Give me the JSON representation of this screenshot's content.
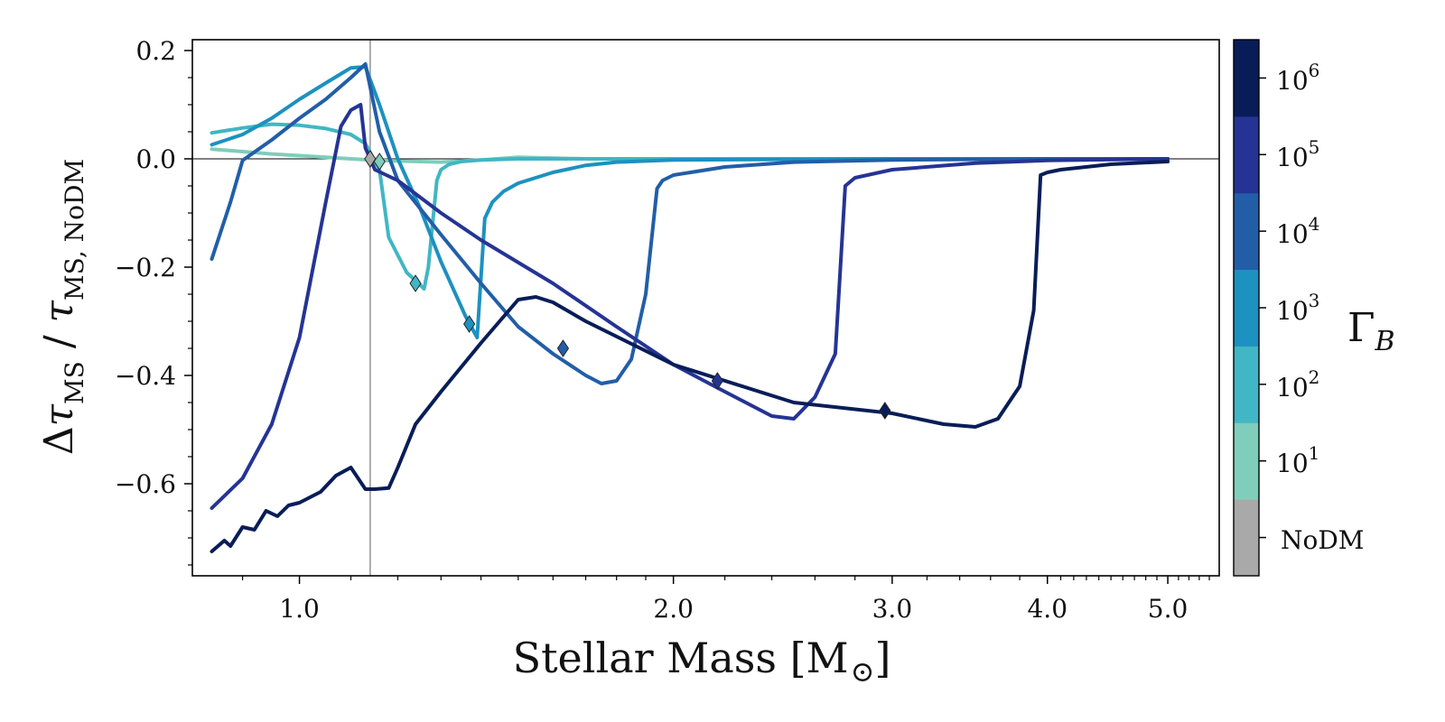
{
  "chart_data": {
    "type": "line",
    "title": "",
    "xlabel": "Stellar Mass [M⊙]",
    "ylabel": "Δτ_MS / τ_MS, NoDM",
    "x_scale": "log",
    "xlim": [
      0.82,
      5.5
    ],
    "ylim": [
      -0.77,
      0.22
    ],
    "x_ticks": [
      1.0,
      2.0,
      3.0,
      4.0,
      5.0
    ],
    "x_tick_labels": [
      "1.0",
      "2.0",
      "3.0",
      "4.0",
      "5.0"
    ],
    "y_ticks": [
      0.2,
      0.0,
      -0.2,
      -0.4,
      -0.6
    ],
    "y_tick_labels": [
      "0.2",
      "0.0",
      "−0.2",
      "−0.4",
      "−0.6"
    ],
    "reference_lines": {
      "horizontal_y": 0.0,
      "vertical_x": 1.14
    },
    "colorbar": {
      "label": "Γ_B",
      "levels": [
        "NoDM",
        "10^1",
        "10^2",
        "10^3",
        "10^4",
        "10^5",
        "10^6"
      ],
      "colors": [
        "#a9a9a9",
        "#7fcdbb",
        "#41b6c4",
        "#1d91c0",
        "#225ea8",
        "#253494",
        "#081d58"
      ],
      "tick_labels": [
        "NoDM",
        "10",
        "1",
        "10",
        "2",
        "10",
        "3",
        "10",
        "4",
        "10",
        "5",
        "10",
        "6"
      ]
    },
    "series": [
      {
        "level": "10^1",
        "color": "#7fcdbb",
        "x": [
          0.85,
          0.95,
          1.05,
          1.1,
          1.14,
          1.2,
          1.3,
          1.4,
          1.5,
          1.7,
          2.0,
          3.0,
          5.0
        ],
        "y": [
          0.018,
          0.009,
          0.003,
          0.0,
          -0.002,
          -0.004,
          -0.006,
          -0.002,
          0.003,
          0.0,
          0.0,
          0.0,
          0.0
        ],
        "marker": null
      },
      {
        "level": "10^2",
        "color": "#41b6c4",
        "x": [
          0.85,
          0.9,
          0.95,
          1.0,
          1.05,
          1.1,
          1.13,
          1.16,
          1.18,
          1.22,
          1.26,
          1.27,
          1.28,
          1.29,
          1.3,
          1.32,
          1.35,
          1.4,
          1.5,
          1.7,
          2.0,
          3.0,
          5.0
        ],
        "y": [
          0.048,
          0.057,
          0.064,
          0.062,
          0.056,
          0.045,
          0.028,
          -0.02,
          -0.145,
          -0.21,
          -0.24,
          -0.2,
          -0.12,
          -0.04,
          -0.02,
          -0.01,
          -0.005,
          -0.002,
          0.0,
          0.0,
          0.0,
          0.0,
          0.0
        ],
        "marker": {
          "x": 1.24,
          "y": -0.23
        }
      },
      {
        "level": "10^3",
        "color": "#1d91c0",
        "x": [
          0.85,
          0.9,
          0.95,
          1.0,
          1.05,
          1.1,
          1.13,
          1.16,
          1.2,
          1.25,
          1.3,
          1.36,
          1.39,
          1.41,
          1.43,
          1.46,
          1.5,
          1.6,
          1.7,
          1.8,
          2.0,
          3.0,
          5.0
        ],
        "y": [
          0.026,
          0.045,
          0.075,
          0.11,
          0.14,
          0.168,
          0.17,
          0.1,
          0.0,
          -0.09,
          -0.19,
          -0.29,
          -0.33,
          -0.11,
          -0.08,
          -0.06,
          -0.045,
          -0.025,
          -0.012,
          -0.006,
          -0.002,
          0.0,
          0.0
        ],
        "marker": {
          "x": 1.37,
          "y": -0.305
        }
      },
      {
        "level": "10^4",
        "color": "#225ea8",
        "x": [
          0.85,
          0.88,
          0.9,
          0.95,
          1.0,
          1.05,
          1.1,
          1.13,
          1.16,
          1.2,
          1.3,
          1.4,
          1.5,
          1.6,
          1.7,
          1.75,
          1.8,
          1.85,
          1.9,
          1.94,
          1.96,
          2.0,
          2.2,
          2.5,
          3.0,
          4.0,
          5.0
        ],
        "y": [
          -0.185,
          -0.08,
          -0.003,
          0.035,
          0.075,
          0.11,
          0.15,
          0.175,
          0.05,
          -0.04,
          -0.14,
          -0.23,
          -0.31,
          -0.36,
          -0.4,
          -0.415,
          -0.41,
          -0.37,
          -0.25,
          -0.055,
          -0.04,
          -0.03,
          -0.015,
          -0.006,
          -0.002,
          0.0,
          0.0
        ],
        "marker": {
          "x": 1.63,
          "y": -0.35
        }
      },
      {
        "level": "10^5",
        "color": "#253494",
        "x": [
          0.85,
          0.9,
          0.95,
          1.0,
          1.05,
          1.08,
          1.1,
          1.12,
          1.13,
          1.15,
          1.2,
          1.3,
          1.4,
          1.6,
          1.8,
          2.0,
          2.2,
          2.4,
          2.5,
          2.6,
          2.7,
          2.75,
          2.8,
          3.0,
          3.5,
          4.0,
          5.0
        ],
        "y": [
          -0.645,
          -0.59,
          -0.49,
          -0.33,
          -0.08,
          0.06,
          0.09,
          0.1,
          0.02,
          -0.02,
          -0.04,
          -0.1,
          -0.15,
          -0.23,
          -0.31,
          -0.38,
          -0.43,
          -0.475,
          -0.48,
          -0.44,
          -0.36,
          -0.05,
          -0.035,
          -0.02,
          -0.008,
          -0.003,
          0.0
        ],
        "marker": {
          "x": 2.17,
          "y": -0.41
        }
      },
      {
        "level": "10^6",
        "color": "#081d58",
        "x": [
          0.85,
          0.87,
          0.88,
          0.9,
          0.92,
          0.94,
          0.96,
          0.98,
          1.0,
          1.04,
          1.07,
          1.1,
          1.13,
          1.15,
          1.18,
          1.2,
          1.24,
          1.3,
          1.4,
          1.5,
          1.55,
          1.6,
          1.7,
          2.0,
          2.5,
          3.0,
          3.3,
          3.5,
          3.65,
          3.8,
          3.9,
          3.95,
          4.0,
          4.1,
          4.5,
          5.0
        ],
        "y": [
          -0.725,
          -0.705,
          -0.715,
          -0.68,
          -0.685,
          -0.65,
          -0.66,
          -0.64,
          -0.635,
          -0.615,
          -0.585,
          -0.57,
          -0.61,
          -0.61,
          -0.608,
          -0.57,
          -0.49,
          -0.43,
          -0.34,
          -0.26,
          -0.255,
          -0.265,
          -0.3,
          -0.38,
          -0.45,
          -0.47,
          -0.49,
          -0.495,
          -0.48,
          -0.42,
          -0.28,
          -0.03,
          -0.025,
          -0.02,
          -0.01,
          -0.005
        ],
        "marker": {
          "x": 2.96,
          "y": -0.465
        }
      }
    ]
  }
}
